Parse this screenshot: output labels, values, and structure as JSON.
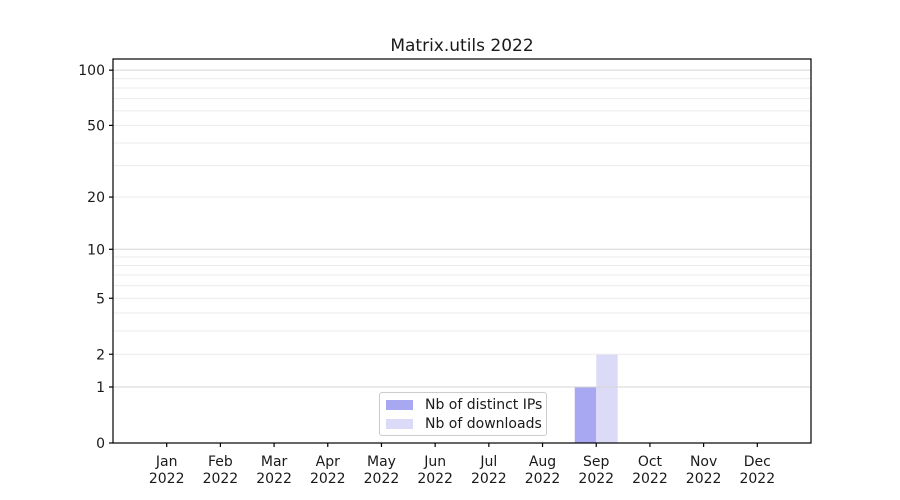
{
  "chart_data": {
    "type": "bar",
    "title": "Matrix.utils 2022",
    "categories": [
      "Jan\n2022",
      "Feb\n2022",
      "Mar\n2022",
      "Apr\n2022",
      "May\n2022",
      "Jun\n2022",
      "Jul\n2022",
      "Aug\n2022",
      "Sep\n2022",
      "Oct\n2022",
      "Nov\n2022",
      "Dec\n2022"
    ],
    "series": [
      {
        "name": "Nb of distinct IPs",
        "color": "#a7a7f2",
        "values": [
          0,
          0,
          0,
          0,
          0,
          0,
          0,
          0,
          1,
          0,
          0,
          0
        ]
      },
      {
        "name": "Nb of downloads",
        "color": "#dbdbf8",
        "values": [
          0,
          0,
          0,
          0,
          0,
          0,
          0,
          0,
          2,
          0,
          0,
          0
        ]
      }
    ],
    "yscale": "log1p",
    "ylim": [
      0,
      115
    ],
    "yticks": [
      0,
      1,
      2,
      5,
      10,
      20,
      50,
      100
    ],
    "major_gridlines": [
      1,
      10,
      100
    ],
    "minor_gridlines": [
      2,
      3,
      4,
      5,
      6,
      7,
      8,
      9,
      20,
      30,
      40,
      50,
      60,
      70,
      80,
      90
    ],
    "grid": "horizontal",
    "legend_position": "bottom-center",
    "colors": {
      "axis": "#000000",
      "text": "#1a1a1a",
      "major_grid": "#d5d5d5",
      "minor_grid": "#ebebeb",
      "legend_border": "#cccccc"
    }
  }
}
